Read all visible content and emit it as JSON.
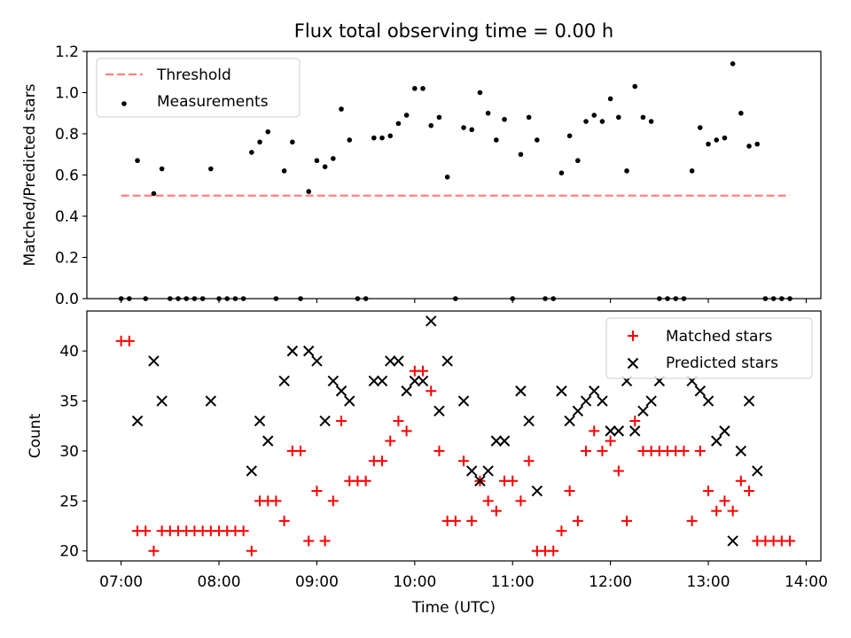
{
  "title": "Flux total observing time = 0.00 h",
  "colors": {
    "threshold": "#ff8080",
    "measurements": "#000000",
    "matched": "#ff0000",
    "predicted": "#000000"
  },
  "chart_data": [
    {
      "type": "scatter",
      "title": "Flux total observing time = 0.00 h",
      "xlabel": "",
      "ylabel": "Matched/Predicted stars",
      "xlim": [
        "06:39",
        "14:09"
      ],
      "ylim": [
        0,
        1.2
      ],
      "yticks": [
        "0.0",
        "0.2",
        "0.4",
        "0.6",
        "0.8",
        "1.0",
        "1.2"
      ],
      "x_ticks": [
        "07:00",
        "08:00",
        "09:00",
        "10:00",
        "11:00",
        "12:00",
        "13:00",
        "14:00"
      ],
      "legend": {
        "location": "upper-left",
        "entries": [
          "Threshold",
          "Measurements"
        ]
      },
      "series": [
        {
          "name": "Threshold",
          "style": "dashed-line",
          "x": [
            "07:00",
            "13:50"
          ],
          "y": [
            0.5,
            0.5
          ]
        },
        {
          "name": "Measurements",
          "style": "dots",
          "x": [
            "07:00",
            "07:05",
            "07:10",
            "07:15",
            "07:20",
            "07:25",
            "07:30",
            "07:35",
            "07:40",
            "07:45",
            "07:50",
            "07:55",
            "08:00",
            "08:05",
            "08:10",
            "08:15",
            "08:20",
            "08:25",
            "08:30",
            "08:35",
            "08:40",
            "08:45",
            "08:50",
            "08:55",
            "09:00",
            "09:05",
            "09:10",
            "09:15",
            "09:20",
            "09:25",
            "09:30",
            "09:35",
            "09:40",
            "09:45",
            "09:50",
            "09:55",
            "10:00",
            "10:05",
            "10:10",
            "10:15",
            "10:20",
            "10:25",
            "10:30",
            "10:35",
            "10:40",
            "10:45",
            "10:50",
            "10:55",
            "11:00",
            "11:05",
            "11:10",
            "11:15",
            "11:20",
            "11:25",
            "11:30",
            "11:35",
            "11:40",
            "11:45",
            "11:50",
            "11:55",
            "12:00",
            "12:05",
            "12:10",
            "12:15",
            "12:20",
            "12:25",
            "12:30",
            "12:35",
            "12:40",
            "12:45",
            "12:50",
            "12:55",
            "13:00",
            "13:05",
            "13:10",
            "13:15",
            "13:20",
            "13:25",
            "13:30",
            "13:35",
            "13:40",
            "13:45",
            "13:50"
          ],
          "y": [
            0,
            0,
            0.67,
            0,
            0.51,
            0.63,
            0,
            0,
            0,
            0,
            0,
            0.63,
            0,
            0,
            0,
            0,
            0.71,
            0.76,
            0.81,
            0,
            0.62,
            0.76,
            0,
            0.52,
            0.67,
            0.64,
            0.68,
            0.92,
            0.77,
            0,
            0,
            0.78,
            0.78,
            0.79,
            0.85,
            0.89,
            1.02,
            1.02,
            0.84,
            0.88,
            0.59,
            0,
            0.83,
            0.82,
            1.0,
            0.9,
            0.77,
            0.87,
            0,
            0.7,
            0.88,
            0.77,
            0,
            0,
            0.61,
            0.79,
            0.67,
            0.86,
            0.89,
            0.86,
            0.97,
            0.88,
            0.62,
            1.03,
            0.88,
            0.86,
            0,
            0,
            0,
            0,
            0.62,
            0.83,
            0.75,
            0.77,
            0.78,
            1.14,
            0.9,
            0.74,
            0.75,
            0,
            0,
            0,
            0
          ]
        }
      ]
    },
    {
      "type": "scatter",
      "title": "",
      "xlabel": "Time (UTC)",
      "ylabel": "Count",
      "xlim": [
        "06:39",
        "14:09"
      ],
      "ylim": [
        19,
        44
      ],
      "yticks": [
        "20",
        "25",
        "30",
        "35",
        "40"
      ],
      "x_ticks": [
        "07:00",
        "08:00",
        "09:00",
        "10:00",
        "11:00",
        "12:00",
        "13:00",
        "14:00"
      ],
      "legend": {
        "location": "upper-right",
        "entries": [
          "Matched stars",
          "Predicted stars"
        ]
      },
      "series": [
        {
          "name": "Matched stars",
          "marker": "+",
          "x": [
            "07:00",
            "07:05",
            "07:10",
            "07:15",
            "07:20",
            "07:25",
            "07:30",
            "07:35",
            "07:40",
            "07:45",
            "07:50",
            "07:55",
            "08:00",
            "08:05",
            "08:10",
            "08:15",
            "08:20",
            "08:25",
            "08:30",
            "08:35",
            "08:40",
            "08:45",
            "08:50",
            "08:55",
            "09:00",
            "09:05",
            "09:10",
            "09:15",
            "09:20",
            "09:25",
            "09:30",
            "09:35",
            "09:40",
            "09:45",
            "09:50",
            "09:55",
            "10:00",
            "10:05",
            "10:10",
            "10:15",
            "10:20",
            "10:25",
            "10:30",
            "10:35",
            "10:40",
            "10:45",
            "10:50",
            "10:55",
            "11:00",
            "11:05",
            "11:10",
            "11:15",
            "11:20",
            "11:25",
            "11:30",
            "11:35",
            "11:40",
            "11:45",
            "11:50",
            "11:55",
            "12:00",
            "12:05",
            "12:10",
            "12:15",
            "12:20",
            "12:25",
            "12:30",
            "12:35",
            "12:40",
            "12:45",
            "12:50",
            "12:55",
            "13:00",
            "13:05",
            "13:10",
            "13:15",
            "13:20",
            "13:25",
            "13:30",
            "13:35",
            "13:40",
            "13:45",
            "13:50"
          ],
          "y": [
            41,
            41,
            22,
            22,
            20,
            22,
            22,
            22,
            22,
            22,
            22,
            22,
            22,
            22,
            22,
            22,
            20,
            25,
            25,
            25,
            23,
            30,
            30,
            21,
            26,
            21,
            25,
            33,
            27,
            27,
            27,
            29,
            29,
            31,
            33,
            32,
            38,
            38,
            36,
            30,
            23,
            23,
            29,
            23,
            27,
            25,
            24,
            27,
            27,
            25,
            29,
            20,
            20,
            20,
            22,
            26,
            23,
            30,
            32,
            30,
            31,
            28,
            23,
            33,
            30,
            30,
            30,
            30,
            30,
            30,
            23,
            30,
            26,
            24,
            25,
            24,
            27,
            26,
            21,
            21,
            21,
            21,
            21
          ]
        },
        {
          "name": "Predicted stars",
          "marker": "x",
          "x": [
            "07:10",
            "07:20",
            "07:25",
            "07:55",
            "08:20",
            "08:25",
            "08:30",
            "08:40",
            "08:45",
            "08:55",
            "09:00",
            "09:05",
            "09:10",
            "09:15",
            "09:20",
            "09:35",
            "09:40",
            "09:45",
            "09:50",
            "09:55",
            "10:00",
            "10:05",
            "10:10",
            "10:15",
            "10:20",
            "10:30",
            "10:35",
            "10:40",
            "10:45",
            "10:50",
            "10:55",
            "11:05",
            "11:10",
            "11:15",
            "11:30",
            "11:35",
            "11:40",
            "11:45",
            "11:50",
            "11:55",
            "12:00",
            "12:05",
            "12:10",
            "12:15",
            "12:20",
            "12:25",
            "12:30",
            "12:50",
            "12:55",
            "13:00",
            "13:05",
            "13:10",
            "13:15",
            "13:20",
            "13:25",
            "13:30"
          ],
          "y": [
            33,
            39,
            35,
            35,
            28,
            33,
            31,
            37,
            40,
            40,
            39,
            33,
            37,
            36,
            35,
            37,
            37,
            39,
            39,
            36,
            37,
            37,
            43,
            34,
            39,
            35,
            28,
            27,
            28,
            31,
            31,
            36,
            33,
            26,
            36,
            33,
            34,
            35,
            36,
            35,
            32,
            32,
            37,
            32,
            34,
            35,
            37,
            37,
            36,
            35,
            31,
            32,
            21,
            30,
            35,
            28
          ]
        }
      ]
    }
  ]
}
